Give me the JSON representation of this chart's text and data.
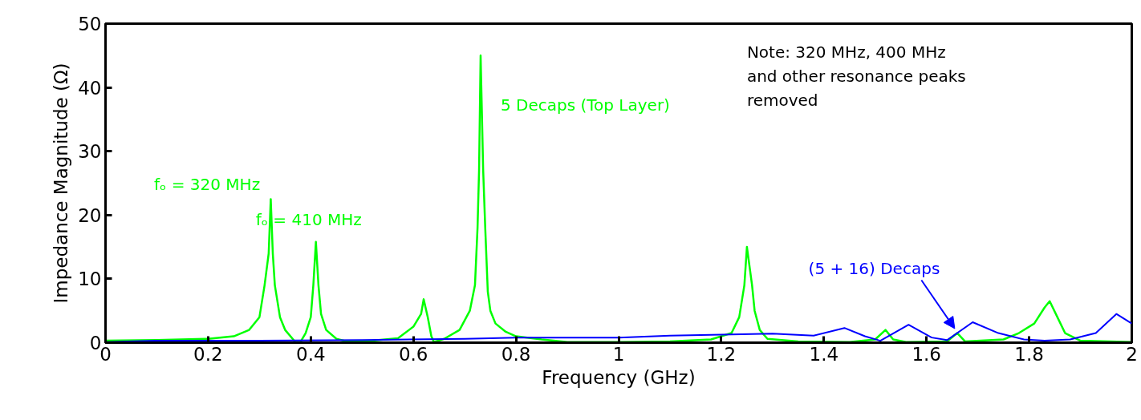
{
  "chart_data": {
    "type": "line",
    "xlabel": "Frequency (GHz)",
    "ylabel": "Impedance Magnitude (Ω)",
    "xlim": [
      0,
      2
    ],
    "ylim": [
      0,
      50
    ],
    "xticks": [
      0,
      0.2,
      0.4,
      0.6,
      0.8,
      1,
      1.2,
      1.4,
      1.6,
      1.8,
      2
    ],
    "yticks": [
      0,
      10,
      20,
      30,
      40,
      50
    ],
    "grid": false,
    "series": [
      {
        "name": "5 Decaps (Top Layer)",
        "color": "#00ff00",
        "x": [
          0,
          0.1,
          0.2,
          0.25,
          0.28,
          0.3,
          0.31,
          0.318,
          0.322,
          0.326,
          0.33,
          0.34,
          0.35,
          0.37,
          0.38,
          0.39,
          0.4,
          0.405,
          0.41,
          0.415,
          0.42,
          0.43,
          0.45,
          0.47,
          0.52,
          0.57,
          0.6,
          0.615,
          0.62,
          0.628,
          0.635,
          0.64,
          0.66,
          0.69,
          0.71,
          0.72,
          0.725,
          0.728,
          0.731,
          0.736,
          0.74,
          0.745,
          0.75,
          0.76,
          0.78,
          0.8,
          0.85,
          0.9,
          1.0,
          1.1,
          1.18,
          1.22,
          1.235,
          1.245,
          1.25,
          1.26,
          1.265,
          1.275,
          1.29,
          1.35,
          1.45,
          1.5,
          1.52,
          1.535,
          1.56,
          1.64,
          1.66,
          1.675,
          1.75,
          1.78,
          1.81,
          1.83,
          1.84,
          1.855,
          1.87,
          1.9,
          2.0
        ],
        "values": [
          0.3,
          0.4,
          0.6,
          1.0,
          2,
          4,
          9,
          14,
          22.5,
          14,
          9,
          4,
          2,
          0.1,
          0.1,
          1.5,
          4,
          9,
          15.8,
          9,
          4.5,
          2,
          0.6,
          0.2,
          0.3,
          0.7,
          2.5,
          4.5,
          6.8,
          4,
          1,
          0.1,
          0.6,
          2,
          5,
          9,
          18,
          27,
          45,
          27,
          18,
          8,
          5,
          3,
          1.7,
          1.0,
          0.5,
          0.1,
          0.1,
          0.2,
          0.5,
          1.5,
          4,
          9,
          15,
          9,
          5,
          2,
          0.6,
          0.2,
          0.1,
          0.5,
          2,
          0.5,
          0.1,
          0.2,
          1.5,
          0.2,
          0.5,
          1.5,
          3,
          5.5,
          6.5,
          4,
          1.5,
          0.3,
          0.1
        ]
      },
      {
        "name": "(5 + 16) Decaps",
        "color": "#0000ff",
        "x": [
          0,
          0.1,
          0.3,
          0.5,
          0.7,
          0.8,
          1.0,
          1.1,
          1.3,
          1.38,
          1.44,
          1.48,
          1.51,
          1.565,
          1.61,
          1.64,
          1.69,
          1.74,
          1.79,
          1.83,
          1.88,
          1.93,
          1.97,
          2.0
        ],
        "values": [
          0.1,
          0.3,
          0.3,
          0.4,
          0.6,
          0.8,
          0.8,
          1.1,
          1.4,
          1.1,
          2.3,
          1.0,
          0.3,
          2.8,
          0.8,
          0.4,
          3.2,
          1.5,
          0.5,
          0.3,
          0.5,
          1.5,
          4.5,
          3
        ]
      }
    ],
    "annotations": [
      {
        "text": "fₒ = 320 MHz",
        "x": 0.32,
        "y": 22.5
      },
      {
        "text": "fₒ = 410 MHz",
        "x": 0.41,
        "y": 15.8
      },
      "Note: 320 MHz, 400 MHz\n   and other resonance peaks\n   removed"
    ]
  }
}
